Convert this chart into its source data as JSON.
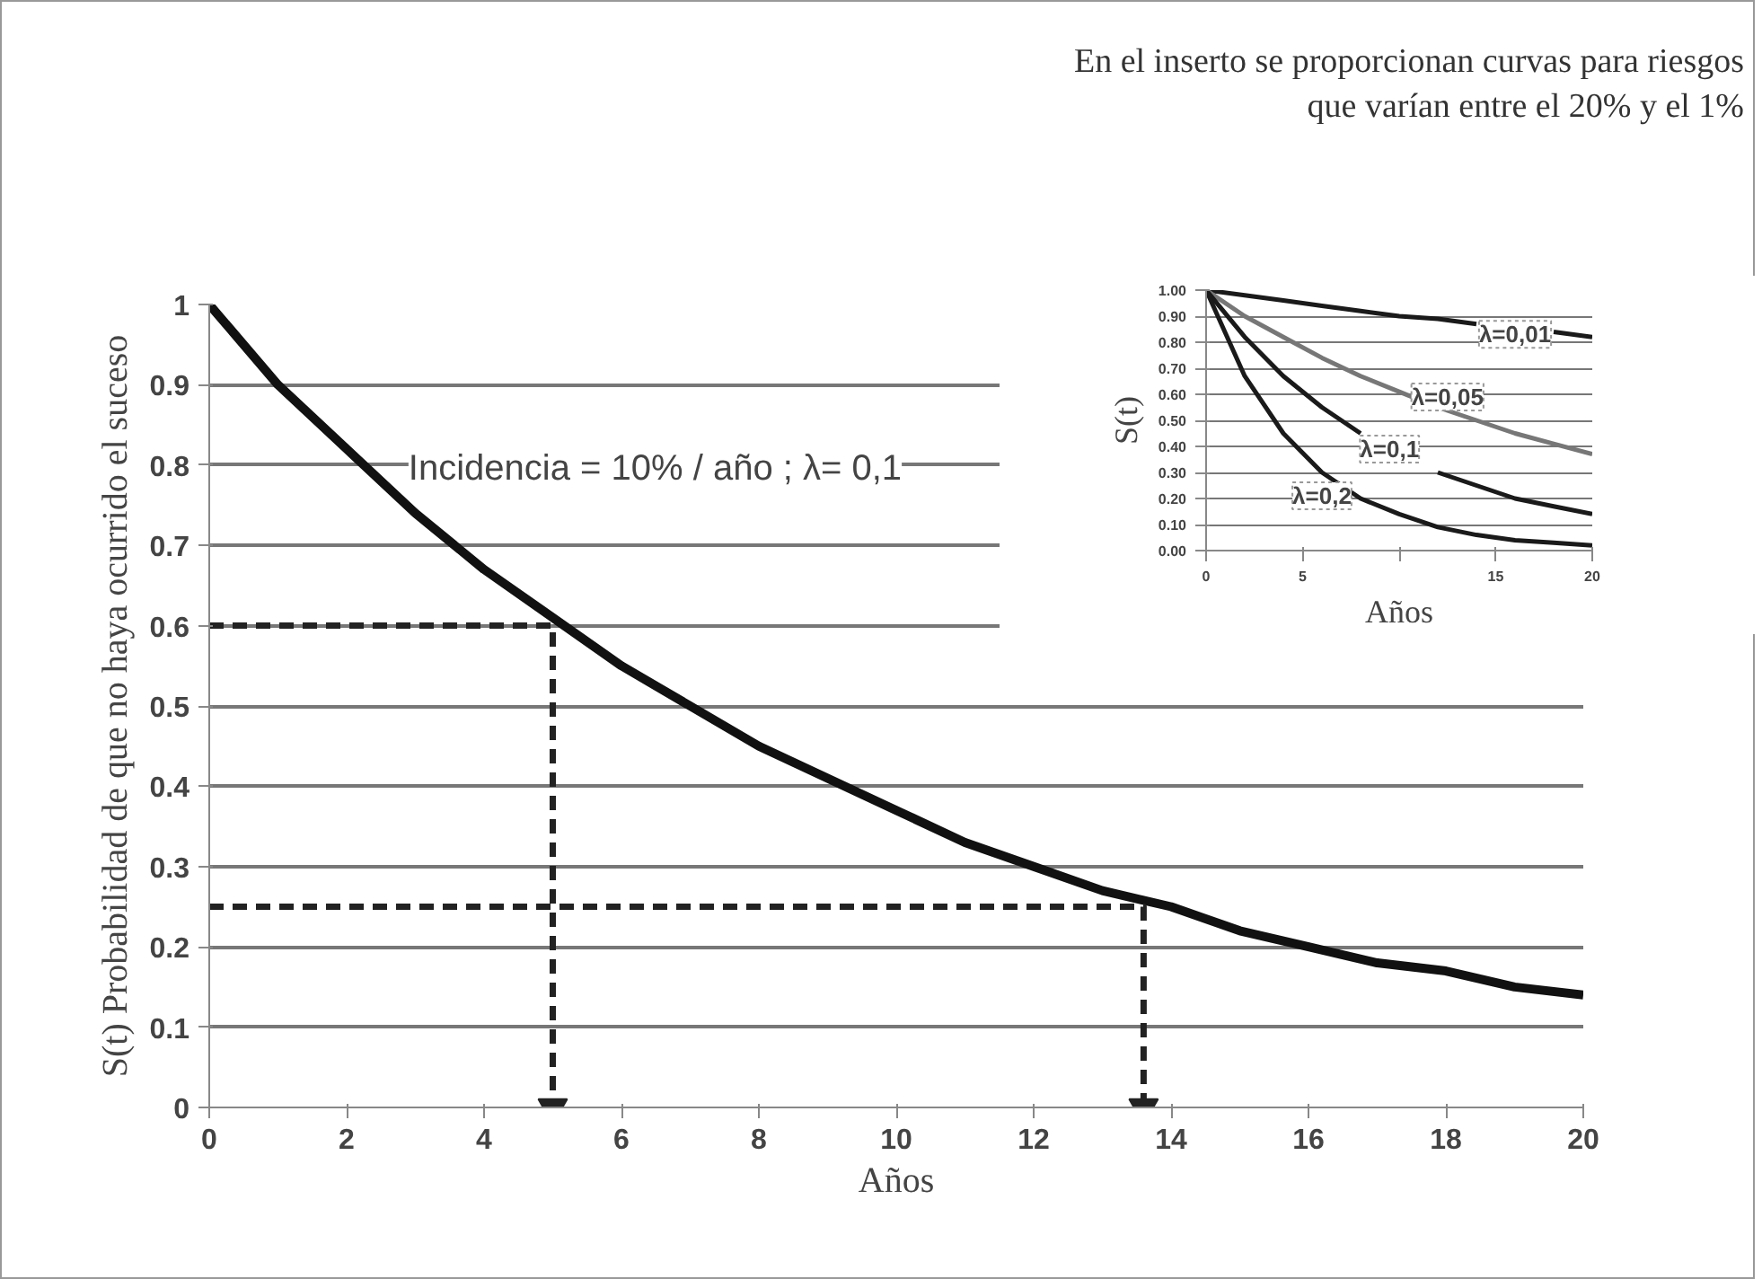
{
  "chart_data": [
    {
      "type": "line",
      "xlabel": "Años",
      "ylabel": "S(t) Probabilidad de que no haya ocurrido el suceso",
      "annotations": [
        "En el inserto se proporcionan curvas para riesgos\nque varían entre el 20% y el 1%",
        "Incidencia = 10% / año ; λ= 0,1"
      ],
      "xlim": [
        0,
        20
      ],
      "ylim": [
        0,
        1
      ],
      "xticks": [
        0,
        2,
        4,
        6,
        8,
        10,
        12,
        14,
        16,
        18,
        20
      ],
      "yticks": [
        0,
        0.1,
        0.2,
        0.3,
        0.4,
        0.5,
        0.6,
        0.7,
        0.8,
        0.9,
        1
      ],
      "grid": "y",
      "marker": "none",
      "series": [
        {
          "color": "#111111",
          "line_style": "solid",
          "x": [
            0,
            1,
            2,
            3,
            4,
            5,
            6,
            7,
            8,
            9,
            10,
            11,
            12,
            13,
            14,
            15,
            16,
            17,
            18,
            19,
            20
          ],
          "values": [
            1,
            0.9,
            0.82,
            0.74,
            0.67,
            0.61,
            0.55,
            0.5,
            0.45,
            0.41,
            0.37,
            0.33,
            0.3,
            0.27,
            0.25,
            0.22,
            0.2,
            0.18,
            0.17,
            0.15,
            0.14
          ]
        },
        {
          "color": "#222222",
          "line_style": "dashed",
          "x": [
            0,
            5,
            5
          ],
          "values": [
            0.6,
            0.6,
            0
          ]
        },
        {
          "color": "#222222",
          "line_style": "dashed",
          "x": [
            0,
            13.6,
            13.6
          ],
          "values": [
            0.25,
            0.25,
            0
          ]
        }
      ]
    },
    {
      "type": "line",
      "xlabel": "Años",
      "ylabel": "S(t)",
      "annotations": [
        {
          "text": "λ=0,01",
          "x": 16,
          "y": 0.83
        },
        {
          "text": "λ=0,05",
          "x": 12.5,
          "y": 0.59
        },
        {
          "text": "λ=0,1",
          "x": 9.5,
          "y": 0.39
        },
        {
          "text": "λ=0,2",
          "x": 6,
          "y": 0.21
        }
      ],
      "xlim": [
        0,
        20
      ],
      "ylim": [
        0,
        1
      ],
      "xticks": [
        0,
        5,
        {
          "value": 10,
          "label": null
        },
        15,
        20
      ],
      "yticks": [
        {
          "value": 0,
          "label": "0.00"
        },
        {
          "value": 0.1,
          "label": "0.10"
        },
        {
          "value": 0.2,
          "label": "0.20"
        },
        {
          "value": 0.3,
          "label": "0.30"
        },
        {
          "value": 0.4,
          "label": "0.40"
        },
        {
          "value": 0.5,
          "label": "0.50"
        },
        {
          "value": 0.6,
          "label": "0.60"
        },
        {
          "value": 0.7,
          "label": "0.70"
        },
        {
          "value": 0.8,
          "label": "0.80"
        },
        {
          "value": 0.9,
          "label": "0.90"
        },
        {
          "value": 1,
          "label": "1.00"
        }
      ],
      "grid": "y",
      "marker": "none",
      "line_style": "solid",
      "x": [
        0,
        2,
        4,
        6,
        8,
        10,
        12,
        14,
        16,
        18,
        20
      ],
      "series": [
        {
          "color": "#1a1a1a",
          "values": [
            1,
            0.98,
            0.96,
            0.94,
            0.92,
            0.9,
            0.89,
            0.87,
            null,
            0.84,
            0.82
          ]
        },
        {
          "color": "#777777",
          "values": [
            1,
            0.9,
            0.82,
            0.74,
            0.67,
            0.61,
            0.55,
            0.5,
            0.45,
            0.41,
            0.37
          ]
        },
        {
          "color": "#1a1a1a",
          "values": [
            1,
            0.82,
            0.67,
            0.55,
            0.45,
            null,
            0.3,
            0.25,
            0.2,
            0.17,
            0.14
          ]
        },
        {
          "color": "#1a1a1a",
          "values": [
            1,
            0.67,
            0.45,
            0.3,
            0.2,
            0.14,
            0.09,
            0.06,
            0.04,
            0.03,
            0.02
          ]
        }
      ]
    }
  ]
}
